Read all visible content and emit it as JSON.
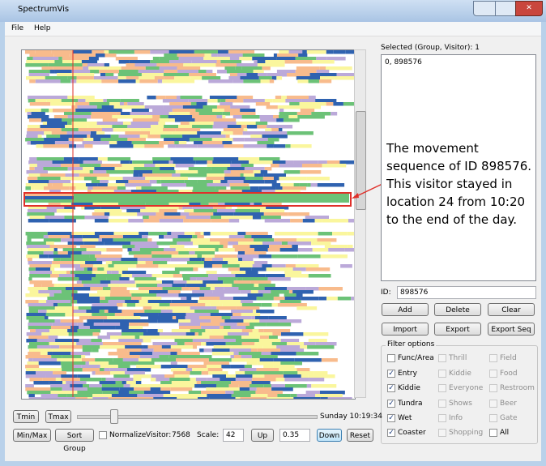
{
  "window": {
    "title": "SpectrumVis"
  },
  "menu": [
    "File",
    "Help"
  ],
  "selected_label": "Selected (Group, Visitor):  1",
  "selected_list": [
    "0, 898576"
  ],
  "annotation": "The movement sequence of ID 898576. This visitor stayed in location 24 from 10:20 to the end of the day.",
  "id_label": "ID:",
  "id_value": "898576",
  "buttons": [
    "Add",
    "Delete",
    "Clear",
    "Import",
    "Export",
    "Export Seq"
  ],
  "filter": {
    "title": "Filter options",
    "columns": [
      [
        {
          "label": "Func/Area",
          "checked": false,
          "enabled": true
        },
        {
          "label": "Entry",
          "checked": true,
          "enabled": true
        },
        {
          "label": "Kiddie",
          "checked": true,
          "enabled": true
        },
        {
          "label": "Tundra",
          "checked": true,
          "enabled": true
        },
        {
          "label": "Wet",
          "checked": true,
          "enabled": true
        },
        {
          "label": "Coaster",
          "checked": true,
          "enabled": true
        }
      ],
      [
        {
          "label": "Thrill",
          "checked": false,
          "enabled": false
        },
        {
          "label": "Kiddie",
          "checked": false,
          "enabled": false
        },
        {
          "label": "Everyone",
          "checked": false,
          "enabled": false
        },
        {
          "label": "Shows",
          "checked": false,
          "enabled": false
        },
        {
          "label": "Info",
          "checked": false,
          "enabled": false
        },
        {
          "label": "Shopping",
          "checked": false,
          "enabled": false
        }
      ],
      [
        {
          "label": "Field",
          "checked": false,
          "enabled": false
        },
        {
          "label": "Food",
          "checked": false,
          "enabled": false
        },
        {
          "label": "Restroom",
          "checked": false,
          "enabled": false
        },
        {
          "label": "Beer",
          "checked": false,
          "enabled": false
        },
        {
          "label": "Gate",
          "checked": false,
          "enabled": false
        },
        {
          "label": "All",
          "checked": false,
          "enabled": true
        }
      ]
    ]
  },
  "controls": {
    "tmin": "Tmin",
    "tmax": "Tmax",
    "time": "Sunday 10:19:34",
    "minmax": "Min/Max",
    "sort_group": "Sort Group",
    "normalize": "Normalize",
    "normalize_checked": false,
    "visitor_label": "Visitor:",
    "visitor_value": "7568",
    "scale_label": "Scale:",
    "scale_value": "42",
    "up": "Up",
    "step": "0.35",
    "down": "Down",
    "reset": "Reset"
  }
}
